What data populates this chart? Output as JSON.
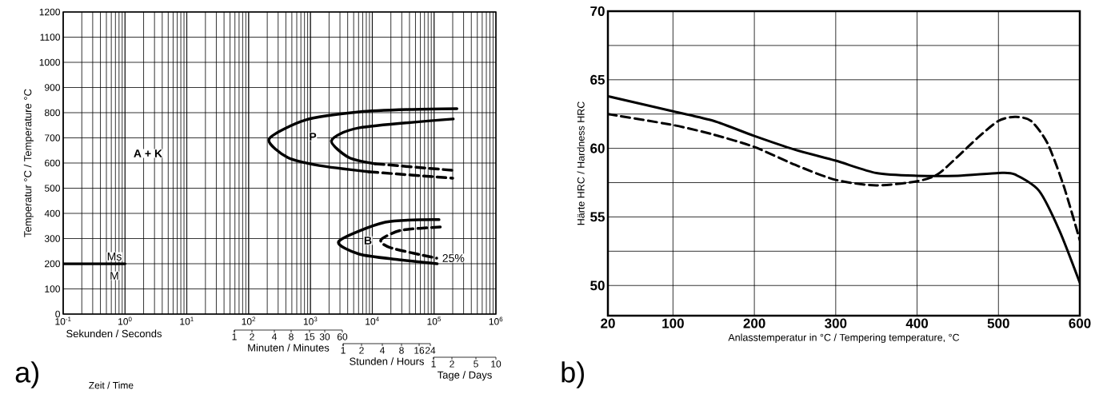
{
  "chart_data": [
    {
      "type": "line",
      "title": "a)",
      "xlabel": "Sekunden / Seconds",
      "ylabel": "Temperatur °C / Temperature °C",
      "log": "x",
      "xlim": [
        0.1,
        1000000
      ],
      "ylim": [
        0,
        1200
      ],
      "xticks": [
        {
          "value": 0.1,
          "label": "10$^{-1}$"
        },
        {
          "value": 1,
          "label": "10$^{0}$"
        },
        {
          "value": 10,
          "label": "10$^{1}$"
        },
        {
          "value": 100,
          "label": "10$^{2}$"
        },
        {
          "value": 1000,
          "label": "10$^{3}$"
        },
        {
          "value": 10000,
          "label": "10$^{4}$"
        },
        {
          "value": 100000,
          "label": "10$^{5}$"
        },
        {
          "value": 1000000,
          "label": "10$^{6}$"
        }
      ],
      "yticks": [
        0,
        100,
        200,
        300,
        400,
        500,
        600,
        700,
        800,
        900,
        1000,
        1100,
        1200
      ],
      "grid": true,
      "annotations": [
        "A + K",
        "P",
        "B",
        "Ms",
        "M",
        "25%",
        "Zeit / Time"
      ],
      "series": [
        {
          "color": "#000000",
          "line_style": "solid",
          "x": [
            234000,
            44700,
            6170,
            832,
            214,
            427,
            1380,
            8910
          ],
          "values": [
            816,
            813,
            803,
            771,
            695,
            622,
            590,
            565
          ]
        },
        {
          "color": "#000000",
          "line_style": "dashed",
          "x": [
            8910,
            200000
          ],
          "values": [
            565,
            540
          ]
        },
        {
          "color": "#000000",
          "line_style": "solid",
          "x": [
            204000,
            6170,
            2190,
            4170,
            11200
          ],
          "values": [
            775,
            740,
            689,
            622,
            597
          ]
        },
        {
          "color": "#000000",
          "line_style": "dashed",
          "x": [
            11200,
            200000
          ],
          "values": [
            597,
            571
          ]
        },
        {
          "color": "#000000",
          "line_style": "solid",
          "x": [
            120000,
            16200,
            2880,
            6170,
            26900,
            112000
          ],
          "values": [
            375,
            365,
            289,
            238,
            216,
            200
          ]
        },
        {
          "color": "#000000",
          "line_style": "dashed",
          "x": [
            126000,
            29500,
            13800,
            20000,
            110000
          ],
          "values": [
            346,
            333,
            295,
            263,
            222
          ]
        },
        {
          "color": "#000000",
          "line_style": "solid",
          "x": [
            0.1,
            1
          ],
          "values": [
            200,
            200
          ]
        }
      ]
    },
    {
      "type": "other",
      "xlabel": "Minuten / Minutes",
      "annotations": [
        "1",
        "2",
        "4",
        "8",
        "15",
        "30",
        "60"
      ]
    },
    {
      "type": "other",
      "xlabel": "Stunden / Hours",
      "annotations": [
        "1",
        "2",
        "4",
        "8",
        "16",
        "24"
      ]
    },
    {
      "type": "other",
      "xlabel": "Tage / Days",
      "annotations": [
        "1",
        "2",
        "5",
        "10"
      ]
    },
    {
      "type": "line",
      "title": "b)",
      "xlabel": "Anlasstemperatur in °C / Tempering temperature, °C",
      "ylabel": "Härte HRC / Hardness HRC",
      "xlim": [
        20,
        600
      ],
      "ylim": [
        47.8,
        70
      ],
      "xticks": [
        20,
        100,
        200,
        300,
        400,
        500,
        600
      ],
      "yticks": [
        50,
        {
          "value": 52.5,
          "label": null
        },
        55,
        {
          "value": 57.5,
          "label": null
        },
        60,
        {
          "value": 62.5,
          "label": null
        },
        65,
        {
          "value": 67.5,
          "label": null
        },
        70
      ],
      "grid": true,
      "series": [
        {
          "color": "#000000",
          "line_style": "solid",
          "x": [
            20,
            100,
            150,
            200,
            250,
            300,
            350,
            400,
            450,
            500,
            520,
            550,
            575,
            600
          ],
          "values": [
            63.8,
            62.7,
            62.0,
            60.9,
            59.9,
            59.1,
            58.2,
            58.0,
            58.0,
            58.2,
            58.1,
            56.9,
            54.0,
            50.2
          ]
        },
        {
          "color": "#000000",
          "line_style": "dashed",
          "x": [
            20,
            100,
            150,
            200,
            250,
            300,
            350,
            400,
            425,
            450,
            475,
            500,
            520,
            540,
            560,
            580,
            600
          ],
          "values": [
            62.5,
            61.7,
            61.0,
            60.1,
            58.8,
            57.7,
            57.3,
            57.6,
            58.1,
            59.4,
            60.8,
            62.0,
            62.3,
            62.0,
            60.4,
            57.3,
            53.3
          ]
        }
      ]
    }
  ]
}
